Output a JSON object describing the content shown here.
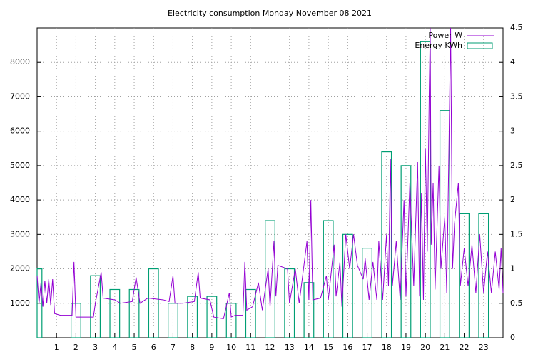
{
  "chart_data": {
    "type": "line-boxes",
    "title": "Electricity consumption Monday November 08 2021",
    "xlim": [
      0,
      24
    ],
    "xticks": [
      1,
      2,
      3,
      4,
      5,
      6,
      7,
      8,
      9,
      10,
      11,
      12,
      13,
      14,
      15,
      16,
      17,
      18,
      19,
      20,
      21,
      22,
      23
    ],
    "ylim": [
      0,
      9000
    ],
    "yticks": [
      1000,
      2000,
      3000,
      4000,
      5000,
      6000,
      7000,
      8000
    ],
    "y2lim": [
      0,
      4.5
    ],
    "y2ticks": [
      0,
      0.5,
      1,
      1.5,
      2,
      2.5,
      3,
      3.5,
      4,
      4.5
    ],
    "grid": true,
    "legend": "top-right",
    "series": [
      {
        "name": "Power W",
        "color": "#9400d3",
        "x": [
          0,
          0.1,
          0.2,
          0.3,
          0.4,
          0.5,
          0.6,
          0.7,
          0.8,
          0.9,
          1.2,
          1.8,
          1.9,
          2.0,
          2.9,
          3.0,
          3.3,
          3.4,
          4.0,
          4.3,
          4.9,
          5.1,
          5.3,
          5.7,
          6.5,
          6.8,
          7.0,
          7.1,
          7.5,
          8.1,
          8.3,
          8.4,
          8.9,
          9.1,
          9.6,
          9.9,
          10.0,
          10.2,
          10.6,
          10.7,
          10.8,
          11.1,
          11.4,
          11.6,
          11.9,
          12.0,
          12.2,
          12.3,
          12.4,
          12.9,
          13.0,
          13.3,
          13.5,
          13.9,
          14.0,
          14.1,
          14.2,
          14.6,
          14.9,
          15.0,
          15.3,
          15.4,
          15.6,
          15.7,
          15.9,
          16.1,
          16.3,
          16.5,
          16.8,
          16.9,
          17.1,
          17.3,
          17.5,
          17.6,
          17.8,
          18.0,
          18.1,
          18.2,
          18.3,
          18.5,
          18.7,
          18.9,
          19.0,
          19.2,
          19.4,
          19.6,
          19.7,
          19.8,
          19.9,
          20.0,
          20.1,
          20.2,
          20.25,
          20.3,
          20.4,
          20.5,
          20.7,
          20.8,
          21.0,
          21.1,
          21.2,
          21.3,
          21.4,
          21.5,
          21.7,
          21.8,
          22.0,
          22.2,
          22.4,
          22.6,
          22.8,
          23.0,
          23.2,
          23.4,
          23.6,
          23.8,
          23.9,
          24.0
        ],
        "values": [
          1800,
          1000,
          1600,
          900,
          1650,
          1000,
          1700,
          950,
          1700,
          700,
          650,
          650,
          2200,
          600,
          600,
          1000,
          1900,
          1150,
          1100,
          1000,
          1050,
          1750,
          1000,
          1150,
          1100,
          1050,
          1800,
          1000,
          1000,
          1050,
          1900,
          1150,
          1100,
          600,
          550,
          1300,
          600,
          650,
          650,
          2200,
          800,
          900,
          1600,
          800,
          2000,
          900,
          2800,
          1200,
          2100,
          2000,
          1000,
          2000,
          1000,
          2800,
          1100,
          4000,
          1100,
          1150,
          1800,
          1100,
          2700,
          1200,
          2200,
          900,
          3000,
          2000,
          3000,
          2100,
          1700,
          2300,
          1100,
          2200,
          1100,
          2800,
          1100,
          3000,
          1500,
          5200,
          1500,
          2800,
          1100,
          4000,
          1200,
          4500,
          1500,
          5100,
          1200,
          4200,
          1100,
          5500,
          2500,
          7200,
          9000,
          2700,
          4500,
          1400,
          5000,
          2000,
          3500,
          1300,
          5000,
          9000,
          2000,
          3300,
          4500,
          1500,
          2600,
          1500,
          2700,
          1300,
          3000,
          1300,
          2500,
          1300,
          2500,
          1400,
          2600,
          1300
        ]
      },
      {
        "name": "Energy KWh",
        "color": "#009e73",
        "axis": "y2",
        "box_width": 0.5,
        "x": [
          0,
          2,
          3,
          4,
          5,
          6,
          7,
          8,
          9,
          10,
          11,
          12,
          13,
          14,
          15,
          16,
          17,
          18,
          19,
          20,
          21,
          22,
          23
        ],
        "values": [
          1.0,
          0.5,
          0.9,
          0.7,
          0.7,
          1.0,
          0.5,
          0.6,
          0.6,
          0.5,
          0.7,
          1.7,
          1.0,
          0.8,
          1.7,
          1.5,
          1.3,
          2.7,
          2.5,
          4.3,
          3.3,
          1.8,
          1.8
        ]
      }
    ]
  }
}
